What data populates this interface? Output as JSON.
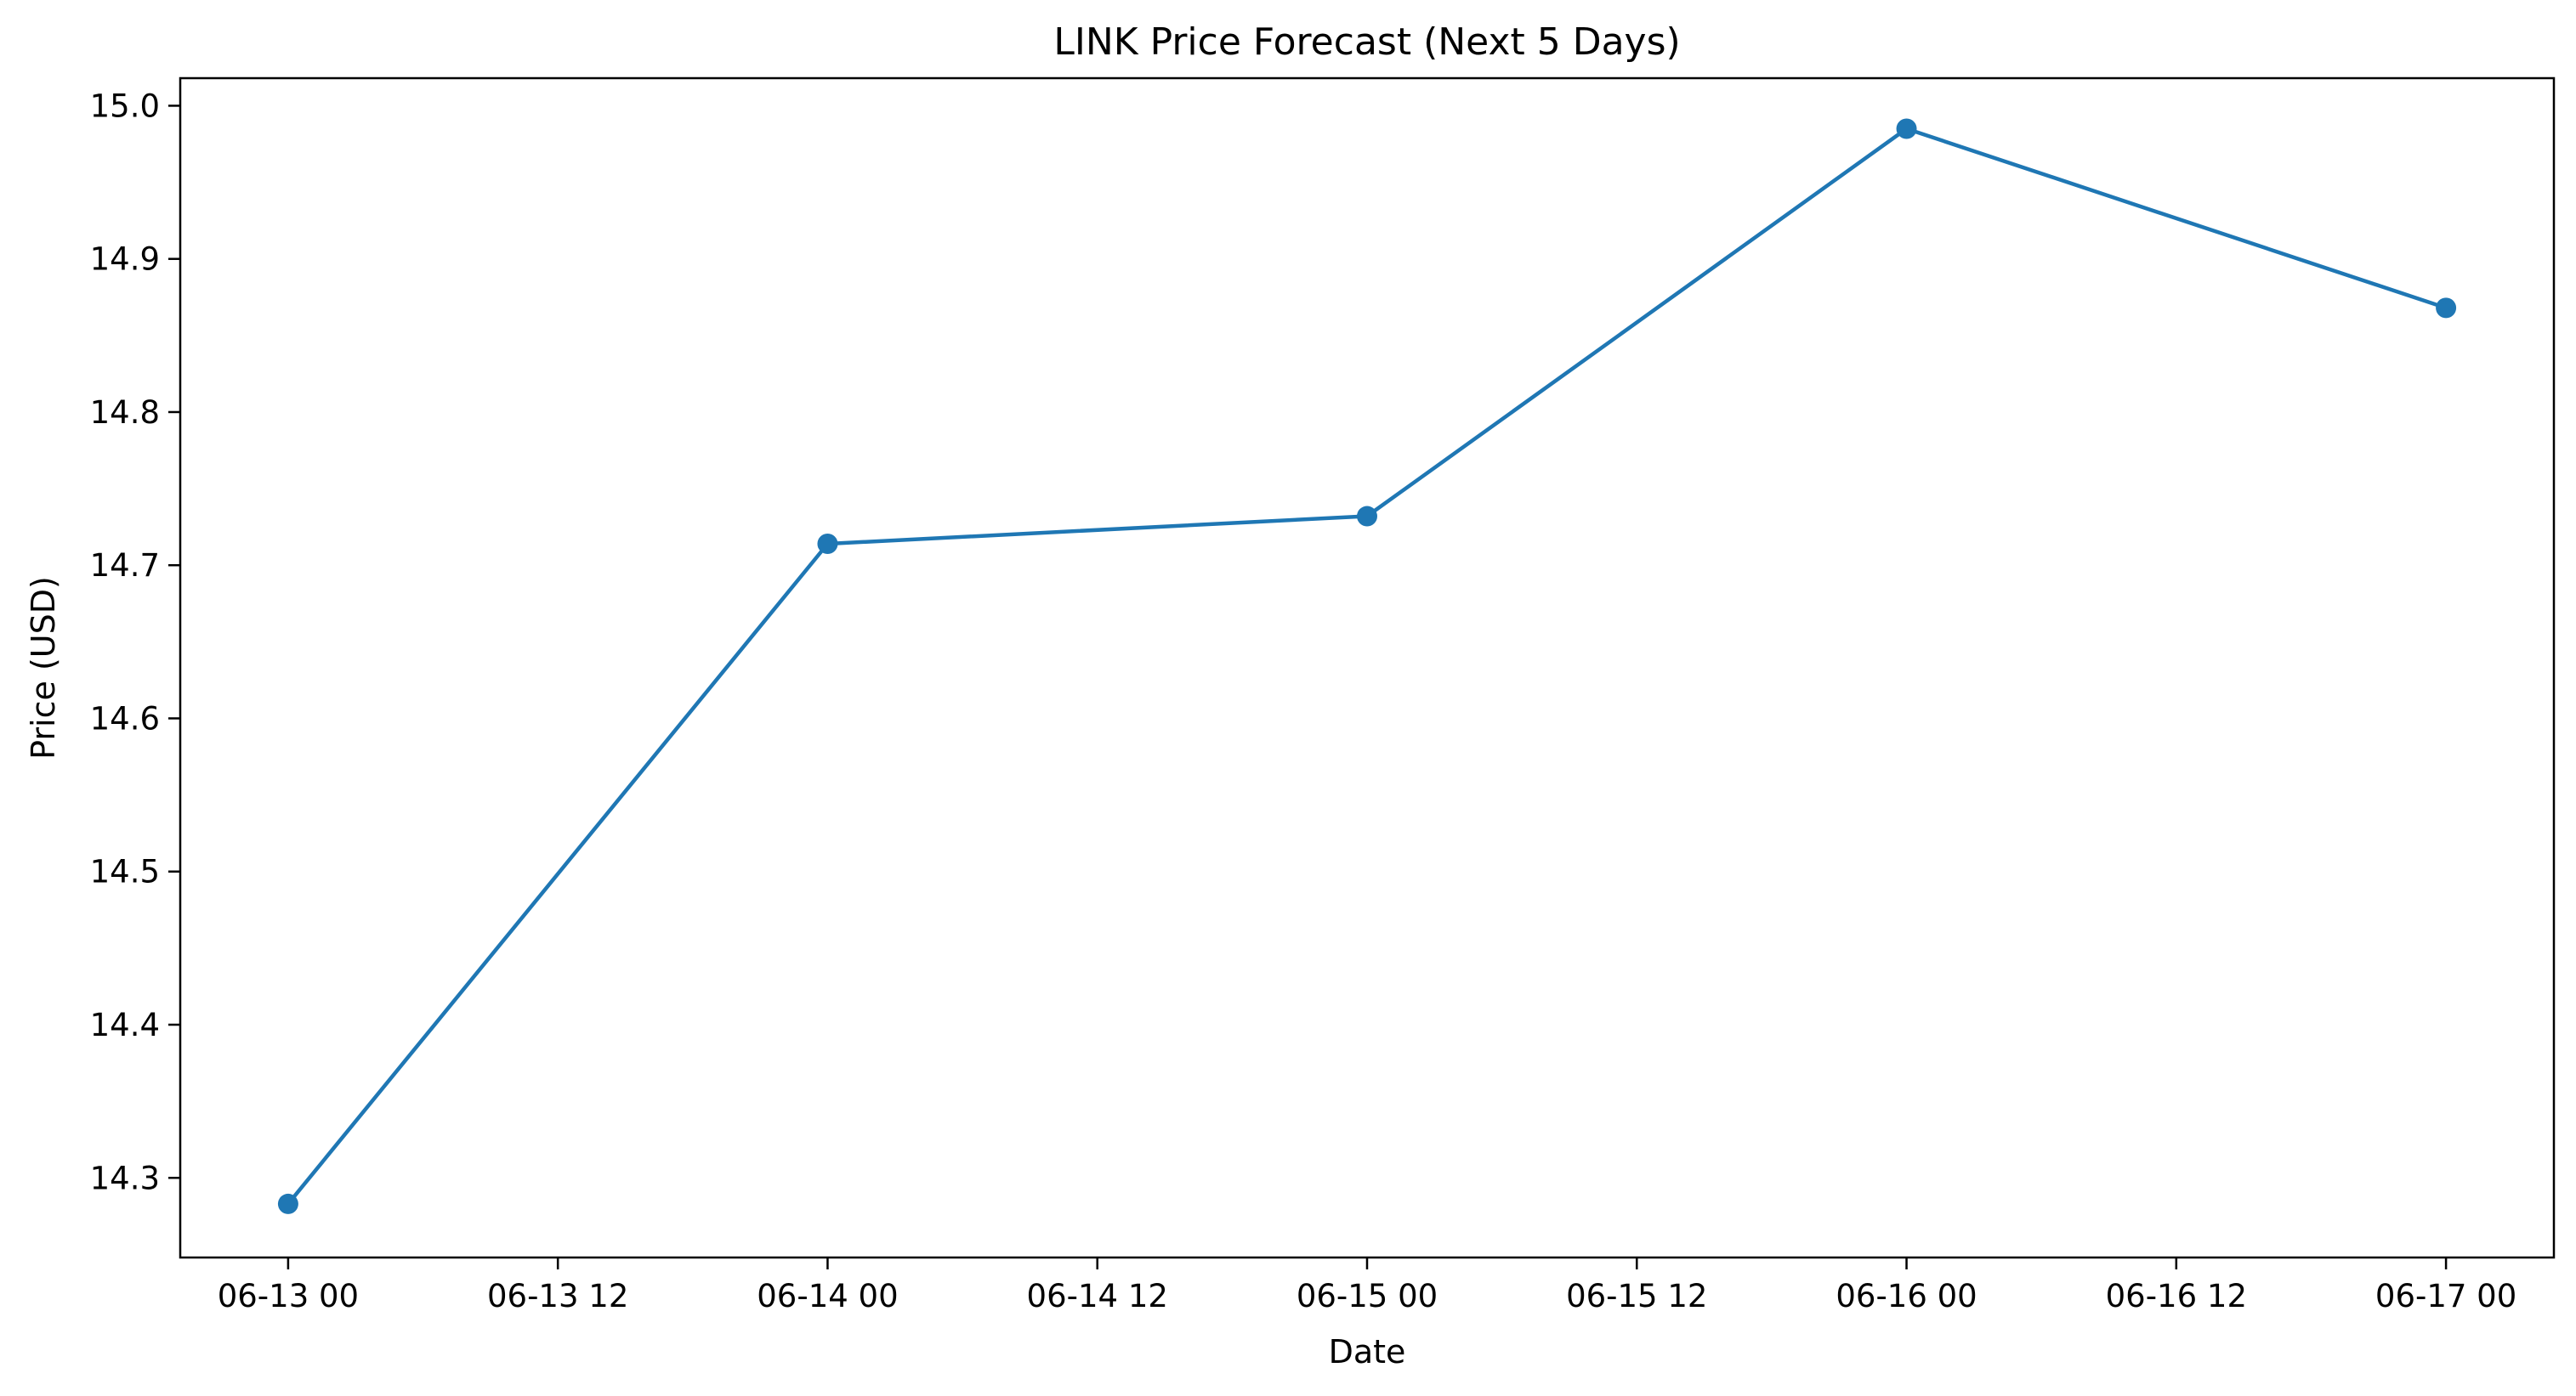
{
  "chart_data": {
    "type": "line",
    "title": "LINK Price Forecast (Next 5 Days)",
    "xlabel": "Date",
    "ylabel": "Price (USD)",
    "x_ticks": [
      "06-13 00",
      "06-13 12",
      "06-14 00",
      "06-14 12",
      "06-15 00",
      "06-15 12",
      "06-16 00",
      "06-16 12",
      "06-17 00"
    ],
    "y_ticks": [
      "14.3",
      "14.4",
      "14.5",
      "14.6",
      "14.7",
      "14.8",
      "14.9",
      "15.0"
    ],
    "xlim": [
      "06-12 19:12",
      "06-17 04:48"
    ],
    "ylim": [
      14.248,
      15.018
    ],
    "grid": false,
    "series": [
      {
        "color": "#1f77b4",
        "marker": "circle",
        "points": [
          {
            "x": "06-13 00",
            "y": 14.283
          },
          {
            "x": "06-14 00",
            "y": 14.714
          },
          {
            "x": "06-15 00",
            "y": 14.732
          },
          {
            "x": "06-16 00",
            "y": 14.985
          },
          {
            "x": "06-17 00",
            "y": 14.868
          }
        ]
      }
    ]
  }
}
